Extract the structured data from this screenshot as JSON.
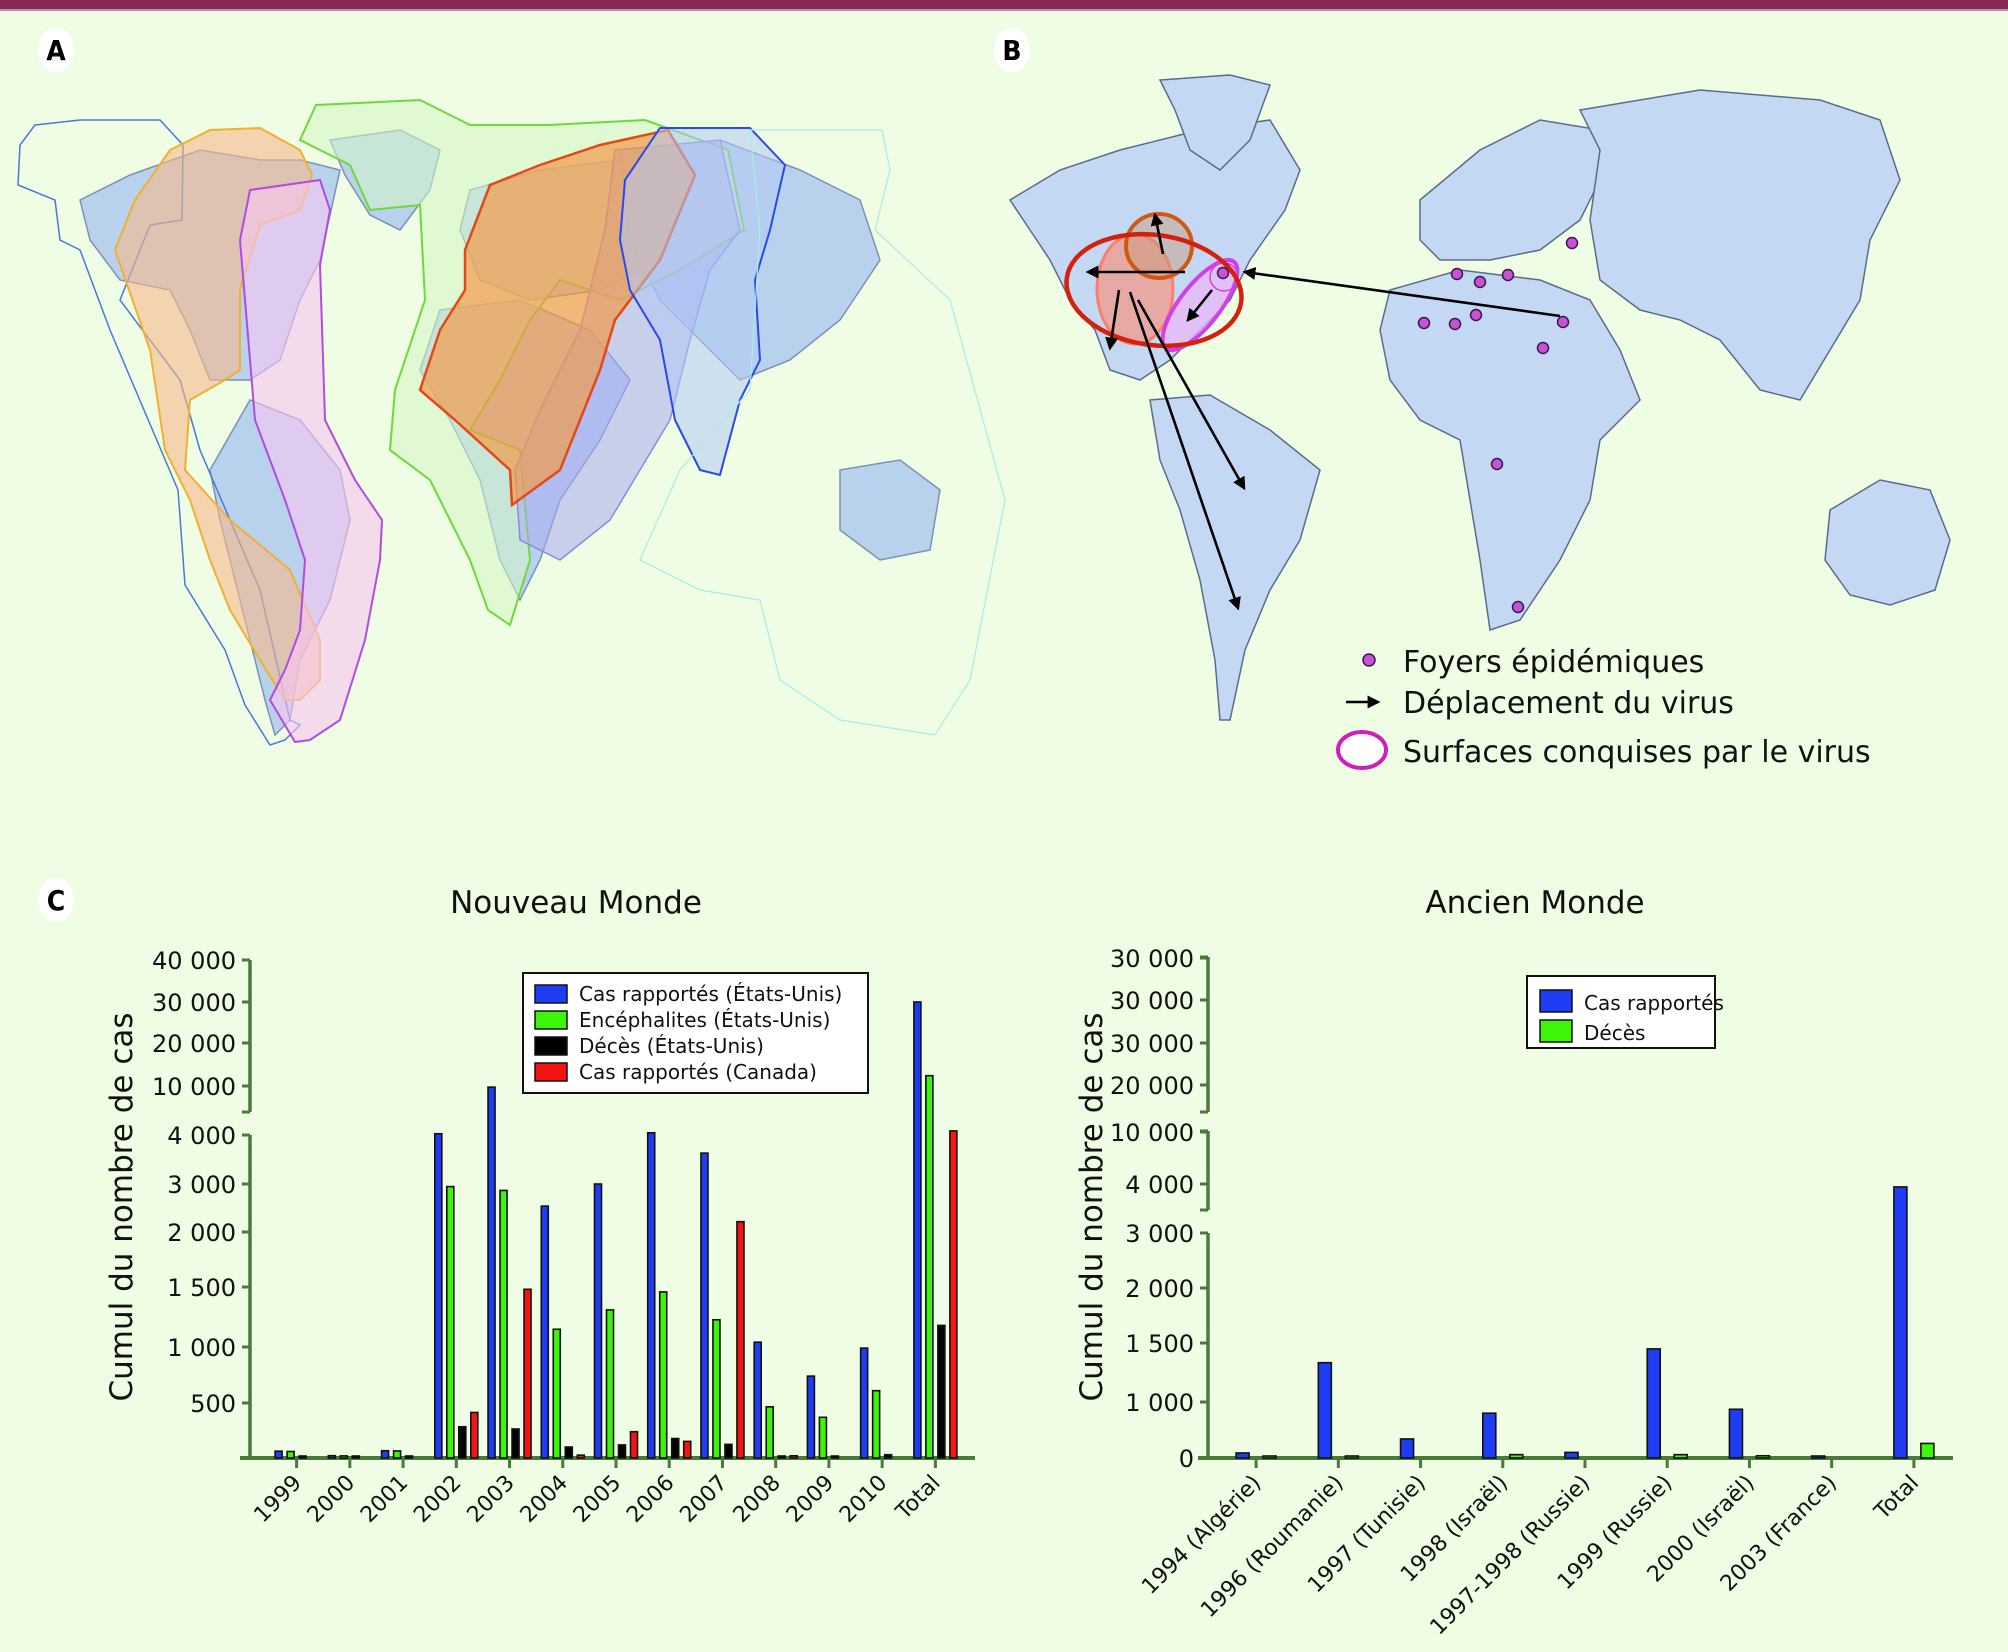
{
  "panels": {
    "a_label": "A",
    "b_label": "B",
    "c_label": "C"
  },
  "map_a": {
    "zones": [
      {
        "name": "blue-outline-americas",
        "stroke": "#4a78d6",
        "fill": "none"
      },
      {
        "name": "orange-americas",
        "stroke": "#f0b030",
        "fill": "#f6b98a"
      },
      {
        "name": "magenta-americas",
        "stroke": "#b04de0",
        "fill": "#f9c4f2"
      },
      {
        "name": "green-eurasia",
        "stroke": "#6fd83a",
        "fill": "#d6f5c4"
      },
      {
        "name": "red-europe-africa",
        "stroke": "#e04a1a",
        "fill": "#f29a4a"
      },
      {
        "name": "purple-africa",
        "stroke": "#8a8ae0",
        "fill": "#a9a9f0"
      },
      {
        "name": "blue-asia",
        "stroke": "#2a4ae8",
        "fill": "#b4c8f6"
      },
      {
        "name": "cyan-oceania",
        "stroke": "#a8eee0",
        "fill": "none"
      }
    ],
    "land_color": "#b8d2ee"
  },
  "map_b": {
    "land_color": "#c5d8f3",
    "border_color": "#5a6c8a",
    "dot_color": "#c652d8",
    "legend": [
      {
        "icon": "dot",
        "label": "Foyers épidémiques"
      },
      {
        "icon": "arrow",
        "label": "Déplacement du virus"
      },
      {
        "icon": "ellipse",
        "label": "Surfaces conquises par le virus"
      }
    ]
  },
  "chart_data": [
    {
      "type": "bar",
      "title": "Nouveau Monde",
      "xlabel": "",
      "ylabel": "Cumul du nombre de cas",
      "axis_color": "#4a7a3a",
      "scale": "broken (piecewise, non-linear)",
      "yticks": [
        {
          "value": 500,
          "label": "500"
        },
        {
          "value": 1000,
          "label": "1 000"
        },
        {
          "value": 1500,
          "label": "1 500"
        },
        {
          "value": 2000,
          "label": "2 000"
        },
        {
          "value": 3000,
          "label": "3 000"
        },
        {
          "value": 4000,
          "label": "4 000"
        },
        {
          "value": 10000,
          "label": "10 000"
        },
        {
          "value": 20000,
          "label": "20 000"
        },
        {
          "value": 30000,
          "label": "30 000"
        },
        {
          "value": 40000,
          "label": "40 000"
        }
      ],
      "categories": [
        "1999",
        "2000",
        "2001",
        "2002",
        "2003",
        "2004",
        "2005",
        "2006",
        "2007",
        "2008",
        "2009",
        "2010",
        "Total"
      ],
      "series": [
        {
          "name": "Cas rapportés (États-Unis)",
          "color": "#1f3cf5",
          "values": [
            62,
            21,
            66,
            4156,
            9862,
            2539,
            3000,
            4269,
            3630,
            1040,
            740,
            990,
            30000
          ]
        },
        {
          "name": "Encéphalites (États-Unis)",
          "color": "#3cf50a",
          "values": [
            59,
            19,
            64,
            2946,
            2866,
            1148,
            1309,
            1459,
            1227,
            465,
            370,
            610,
            12400
          ]
        },
        {
          "name": "Décès (États-Unis)",
          "color": "#000000",
          "values": [
            7,
            2,
            9,
            284,
            264,
            100,
            119,
            177,
            124,
            10,
            15,
            30,
            1180
          ]
        },
        {
          "name": "Cas rapportés (Canada)",
          "color": "#f51414",
          "values": [
            0,
            0,
            0,
            414,
            1481,
            26,
            239,
            151,
            2215,
            20,
            0,
            0,
            4500
          ]
        }
      ],
      "legend": "top-right"
    },
    {
      "type": "bar",
      "title": "Ancien Monde",
      "xlabel": "",
      "ylabel": "Cumul du nombre de cas",
      "axis_color": "#4a7a3a",
      "scale": "broken (piecewise, non-linear)",
      "yticks": [
        {
          "value": 0,
          "label": "0"
        },
        {
          "value": 1000,
          "label": "1 000"
        },
        {
          "value": 1500,
          "label": "1 500"
        },
        {
          "value": 2000,
          "label": "2 000"
        },
        {
          "value": 3000,
          "label": "3 000"
        },
        {
          "value": 4000,
          "label": "4 000"
        },
        {
          "value": 10000,
          "label": "10 000"
        },
        {
          "value": 20000,
          "label": "20 000"
        },
        {
          "value": 30000,
          "label": "30 000"
        },
        {
          "value": 30000,
          "label": "30 000"
        },
        {
          "value": 30000,
          "label": "30 000"
        }
      ],
      "categories": [
        "1994 (Algérie)",
        "1996 (Roumanie)",
        "1997 (Tunisie)",
        "1998 (Israël)",
        "1997-1998 (Russie)",
        "1999 (Russie)",
        "2000 (Israël)",
        "2003 (France)",
        "Total"
      ],
      "series": [
        {
          "name": "Cas rapportés",
          "color": "#1f3cf5",
          "values": [
            90,
            1333,
            340,
            800,
            100,
            1450,
            870,
            7,
            3940
          ]
        },
        {
          "name": "Décès",
          "color": "#3cf50a",
          "values": [
            5,
            17,
            0,
            60,
            0,
            60,
            40,
            0,
            260
          ]
        }
      ],
      "legend": "top-center"
    }
  ]
}
